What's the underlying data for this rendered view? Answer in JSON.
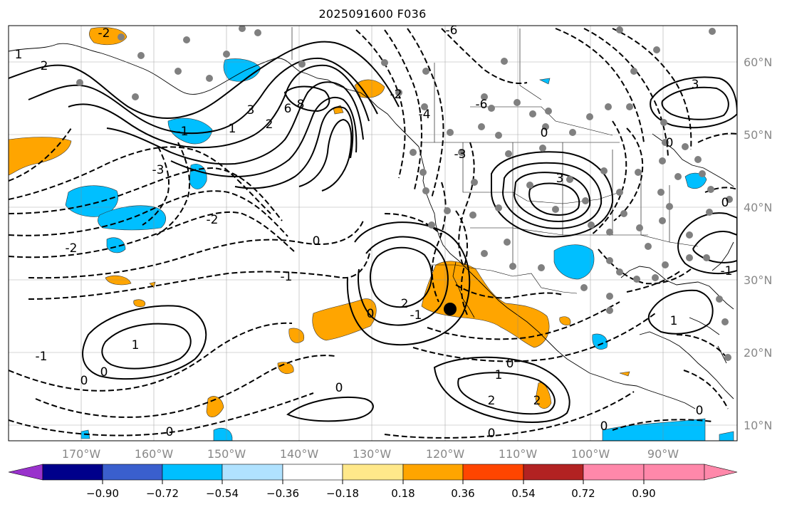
{
  "title": "2025091600 F036",
  "lon_labels": [
    "170°W",
    "160°W",
    "150°W",
    "140°W",
    "130°W",
    "120°W",
    "110°W",
    "100°W",
    "90°W"
  ],
  "lat_labels": [
    "60°N",
    "50°N",
    "40°N",
    "30°N",
    "20°N",
    "10°N"
  ],
  "colorbar": {
    "ticks": [
      "−0.90",
      "−0.72",
      "−0.54",
      "−0.36",
      "−0.18",
      "0.18",
      "0.36",
      "0.54",
      "0.72",
      "0.90"
    ],
    "colors": [
      "#9932cc",
      "#00008b",
      "#3a5fcd",
      "#00bfff",
      "#b0e2ff",
      "#ffffff",
      "#ffe88a",
      "#ffa500",
      "#ff4500",
      "#b22222",
      "#ff88aa"
    ]
  },
  "contour_labels": {
    "n2_nw": "-2",
    "p2_w": "2",
    "p1_w": "1",
    "n1_a": "-1",
    "n3": "-3",
    "n2_b": "-2",
    "p3_low": "3",
    "p2_low": "2",
    "p1_low": "1",
    "p6": "6",
    "p8": "8",
    "n2_c": "-2",
    "n0_a": "0",
    "n1_d": "-1",
    "p1_sw": "1",
    "p0_sw": "0",
    "n1_sw": "-1",
    "n0_b": "0",
    "p2_m": "2",
    "p0_m": "0",
    "n1_m": "-1",
    "p0_s": "0",
    "p1_s": "1",
    "p2_s1": "2",
    "p2_s2": "2",
    "n0_s": "0",
    "n0_s2": "0",
    "p3_ne": "3",
    "n3_ne": "-3",
    "p3_e": "3",
    "n1_e": "-1",
    "n0_e": "0",
    "n0_se": "0",
    "p1_se": "1",
    "p0_se": "0",
    "n6_n": "-6",
    "n4_n": "-4",
    "n2_n": "-2",
    "n6_n2": "-6",
    "n3_n": "-3",
    "n0_mid": "0",
    "p0_far": "0"
  },
  "marker": {
    "label": "storm-center",
    "lon": -120.1,
    "lat": 26.0
  }
}
